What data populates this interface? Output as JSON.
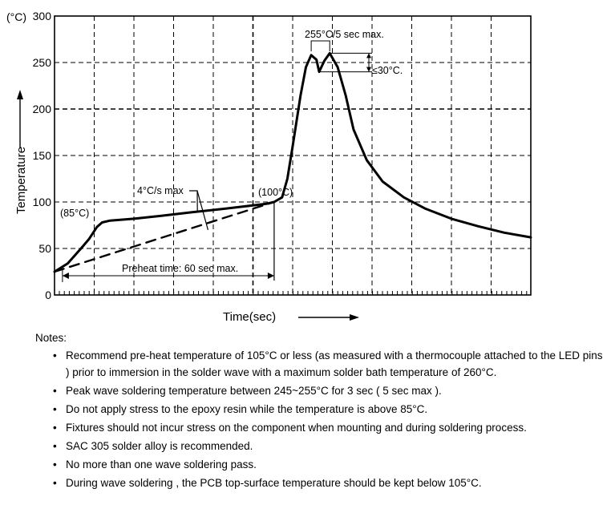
{
  "chart_data": {
    "type": "line",
    "title": "",
    "ylabel": "Temperature",
    "y_unit": "(°C)",
    "xlabel": "Time(sec)",
    "ylim": [
      0,
      300
    ],
    "y_ticks": [
      0,
      50,
      100,
      150,
      200,
      250,
      300
    ],
    "grid": true,
    "series": [
      {
        "values": [
          [
            0,
            25
          ],
          [
            0.05,
            34
          ],
          [
            0.1,
            50
          ],
          [
            0.13,
            60
          ],
          [
            0.16,
            73
          ],
          [
            0.18,
            78
          ],
          [
            0.21,
            80
          ],
          [
            0.3,
            82
          ],
          [
            0.4,
            85
          ],
          [
            0.52,
            89
          ],
          [
            0.65,
            93
          ],
          [
            0.74,
            96
          ],
          [
            0.8,
            98
          ],
          [
            0.83,
            100
          ],
          [
            0.86,
            105
          ],
          [
            0.88,
            125
          ],
          [
            0.9,
            160
          ],
          [
            0.93,
            215
          ],
          [
            0.95,
            245
          ],
          [
            0.97,
            258
          ],
          [
            0.99,
            253
          ],
          [
            1.0,
            240
          ],
          [
            1.02,
            252
          ],
          [
            1.04,
            260
          ],
          [
            1.07,
            245
          ],
          [
            1.1,
            215
          ],
          [
            1.13,
            178
          ],
          [
            1.18,
            145
          ],
          [
            1.24,
            122
          ],
          [
            1.32,
            105
          ],
          [
            1.4,
            93
          ],
          [
            1.5,
            82
          ],
          [
            1.6,
            74
          ],
          [
            1.7,
            67
          ],
          [
            1.8,
            62
          ]
        ],
        "style": "solid"
      },
      {
        "values": [
          [
            0,
            25
          ],
          [
            0.83,
            100
          ]
        ],
        "style": "dashed"
      }
    ],
    "annotations": {
      "peak": "255°C/5 sec max.",
      "delta": "≤30°C.",
      "ramp": "4°C/s max",
      "t100": "(100°C)",
      "t85": "(85°C)",
      "preheat": "Preheat time: 60 sec max."
    }
  },
  "notes": {
    "title": "Notes:",
    "bullet": "•",
    "items": [
      "Recommend pre-heat temperature of 105°C or less (as measured with a thermocouple attached to the LED pins ) prior to immersion in the solder wave with a maximum solder bath temperature of 260°C.",
      "Peak wave soldering temperature  between 245~255°C for 3 sec ( 5 sec max ).",
      "Do not apply stress to the epoxy resin while the temperature is above 85°C.",
      "Fixtures should not incur stress on the component when mounting and during soldering process.",
      "SAC 305 solder alloy is recommended.",
      "No more than one wave soldering pass.",
      "During wave soldering , the PCB top-surface temperature should be kept below 105°C."
    ]
  }
}
